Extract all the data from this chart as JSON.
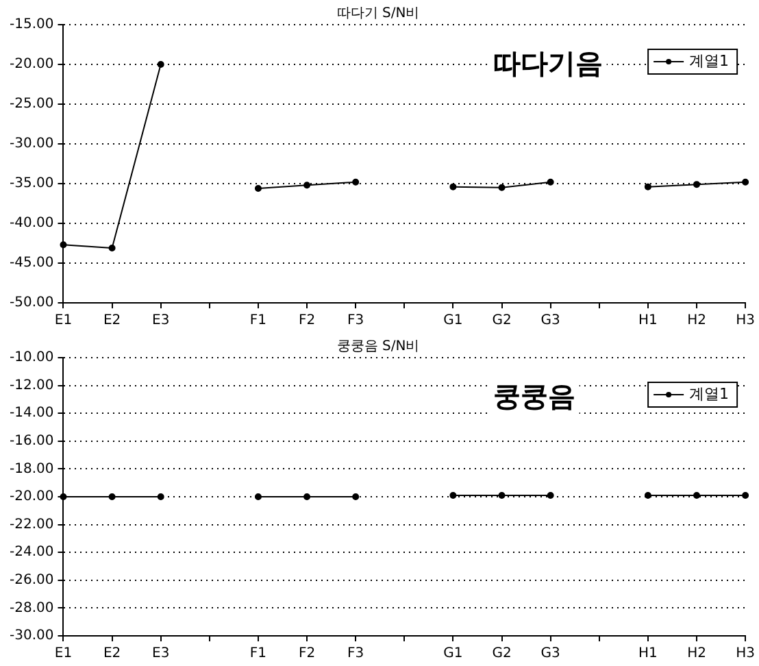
{
  "chart_data": [
    {
      "type": "line",
      "title": "따다기 S/N비",
      "annotations": [
        "따다기음"
      ],
      "categories": [
        "E1",
        "E2",
        "E3",
        null,
        "F1",
        "F2",
        "F3",
        null,
        "G1",
        "G2",
        "G3",
        null,
        "H1",
        "H2",
        "H3"
      ],
      "series": [
        {
          "name": "계열1",
          "color": "#000000",
          "values": [
            -42.7,
            -43.1,
            -20.0,
            null,
            -35.6,
            -35.2,
            -34.8,
            null,
            -35.4,
            -35.5,
            -34.8,
            null,
            -35.4,
            -35.1,
            -34.8
          ]
        }
      ],
      "ylim": [
        -50,
        -15
      ],
      "yticks": [
        {
          "value": -50,
          "label": "-50.00"
        },
        {
          "value": -45,
          "label": "-45.00"
        },
        {
          "value": -40,
          "label": "-40.00"
        },
        {
          "value": -35,
          "label": "-35.00"
        },
        {
          "value": -30,
          "label": "-30.00"
        },
        {
          "value": -25,
          "label": "-25.00"
        },
        {
          "value": -20,
          "label": "-20.00"
        },
        {
          "value": -15,
          "label": "-15.00"
        }
      ],
      "grid": "y",
      "legend": "top right",
      "marker": "circle",
      "line_style": "solid"
    },
    {
      "type": "line",
      "title": "쿵쿵음 S/N비",
      "annotations": [
        "쿵쿵음"
      ],
      "categories": [
        "E1",
        "E2",
        "E3",
        null,
        "F1",
        "F2",
        "F3",
        null,
        "G1",
        "G2",
        "G3",
        null,
        "H1",
        "H2",
        "H3"
      ],
      "series": [
        {
          "name": "계열1",
          "color": "#000000",
          "values": [
            -20.0,
            -20.0,
            -20.0,
            null,
            -20.0,
            -20.0,
            -20.0,
            null,
            -19.9,
            -19.9,
            -19.9,
            null,
            -19.9,
            -19.9,
            -19.9
          ]
        }
      ],
      "ylim": [
        -30,
        -10
      ],
      "yticks": [
        {
          "value": -30,
          "label": "-30.00"
        },
        {
          "value": -28,
          "label": "-28.00"
        },
        {
          "value": -26,
          "label": "-26.00"
        },
        {
          "value": -24,
          "label": "-24.00"
        },
        {
          "value": -22,
          "label": "-22.00"
        },
        {
          "value": -20,
          "label": "-20.00"
        },
        {
          "value": -18,
          "label": "-18.00"
        },
        {
          "value": -16,
          "label": "-16.00"
        },
        {
          "value": -14,
          "label": "-14.00"
        },
        {
          "value": -12,
          "label": "-12.00"
        },
        {
          "value": -10,
          "label": "-10.00"
        }
      ],
      "grid": "y",
      "legend": "top right",
      "marker": "circle",
      "line_style": "solid"
    }
  ]
}
